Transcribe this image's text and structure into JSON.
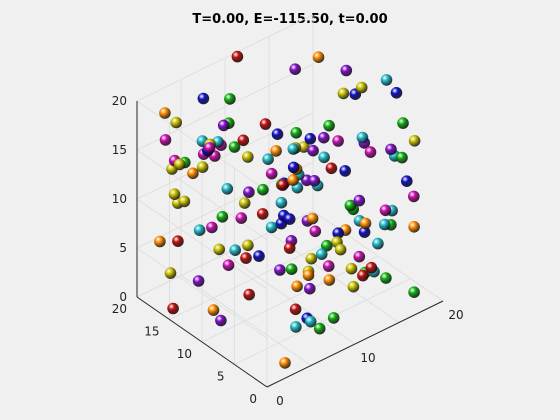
{
  "chart_data": {
    "type": "scatter3d",
    "title": "T=0.00, E=-115.50, t=0.00",
    "xlabel": "",
    "ylabel": "",
    "zlabel": "",
    "xlim": [
      0,
      20
    ],
    "ylim": [
      0,
      20
    ],
    "zlim": [
      0,
      20
    ],
    "grid": true,
    "x_ticks": [
      "0",
      "10",
      "20"
    ],
    "y_ticks": [
      "0",
      "5",
      "10",
      "15",
      "20"
    ],
    "z_ticks": [
      "0",
      "5",
      "10",
      "15",
      "20"
    ],
    "marker": "sphere",
    "point_count": 150
  }
}
